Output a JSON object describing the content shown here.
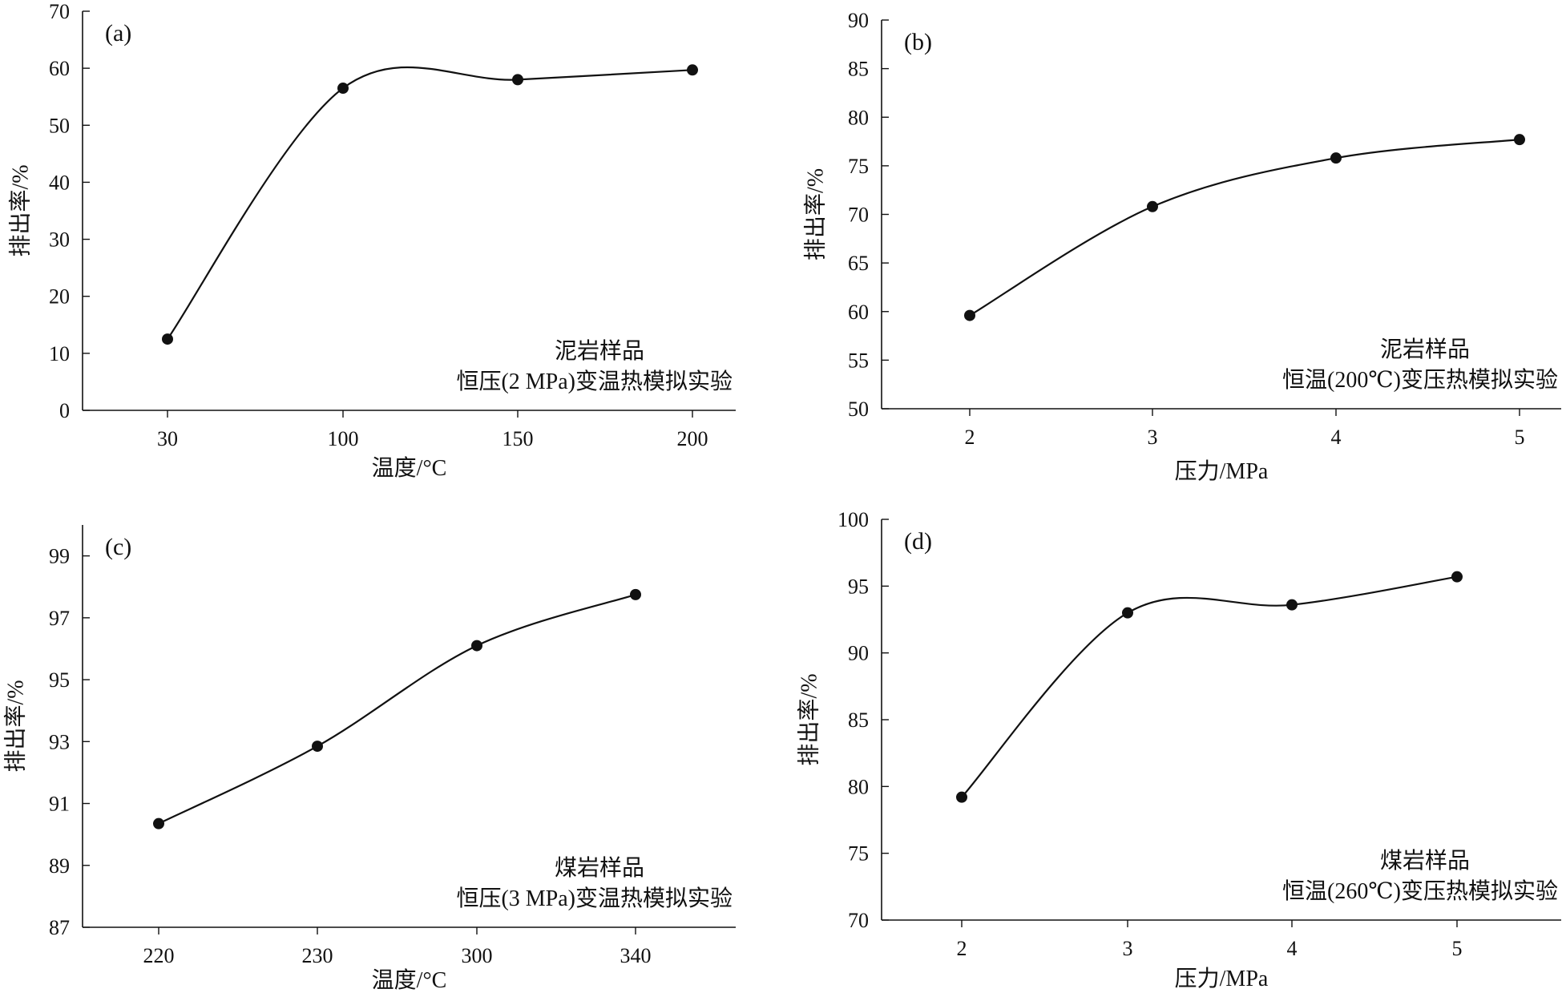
{
  "chart_data": [
    {
      "type": "line",
      "panel": "(a)",
      "xlabel": "温度/°C",
      "ylabel": "排出率/%",
      "categories": [
        "30",
        "100",
        "150",
        "200"
      ],
      "values": [
        12.5,
        56.5,
        58,
        59.7
      ],
      "ylim": [
        0,
        70
      ],
      "yticks": [
        "0",
        "10",
        "20",
        "30",
        "40",
        "50",
        "60",
        "70"
      ],
      "annotation": [
        "泥岩样品",
        "恒压(2 MPa)变温热模拟实验"
      ],
      "smooth": true,
      "grid": false
    },
    {
      "type": "line",
      "panel": "(b)",
      "xlabel": "压力/MPa",
      "ylabel": "排出率/%",
      "categories": [
        "2",
        "3",
        "4",
        "5"
      ],
      "values": [
        59.6,
        70.8,
        75.8,
        77.7
      ],
      "ylim": [
        50,
        90
      ],
      "yticks": [
        "50",
        "55",
        "60",
        "65",
        "70",
        "75",
        "80",
        "85",
        "90"
      ],
      "annotation": [
        "泥岩样品",
        "恒温(200℃)变压热模拟实验"
      ],
      "smooth": true,
      "grid": false
    },
    {
      "type": "line",
      "panel": "(c)",
      "xlabel": "温度/°C",
      "ylabel": "排出率/%",
      "categories": [
        "220",
        "230",
        "300",
        "340"
      ],
      "values": [
        90.35,
        92.85,
        96.1,
        97.75
      ],
      "ylim": [
        87,
        100
      ],
      "yticks": [
        "87",
        "89",
        "91",
        "93",
        "95",
        "97",
        "99"
      ],
      "annotation": [
        "煤岩样品",
        "恒压(3 MPa)变温热模拟实验"
      ],
      "smooth": true,
      "grid": false
    },
    {
      "type": "line",
      "panel": "(d)",
      "xlabel": "压力/MPa",
      "ylabel": "排出率/%",
      "categories": [
        "2",
        "3",
        "4",
        "5"
      ],
      "values": [
        79.2,
        93,
        93.6,
        95.7
      ],
      "ylim": [
        70,
        100
      ],
      "yticks": [
        "70",
        "75",
        "80",
        "85",
        "90",
        "95",
        "100"
      ],
      "annotation": [
        "煤岩样品",
        "恒温(260℃)变压热模拟实验"
      ],
      "smooth": true,
      "grid": false
    }
  ]
}
